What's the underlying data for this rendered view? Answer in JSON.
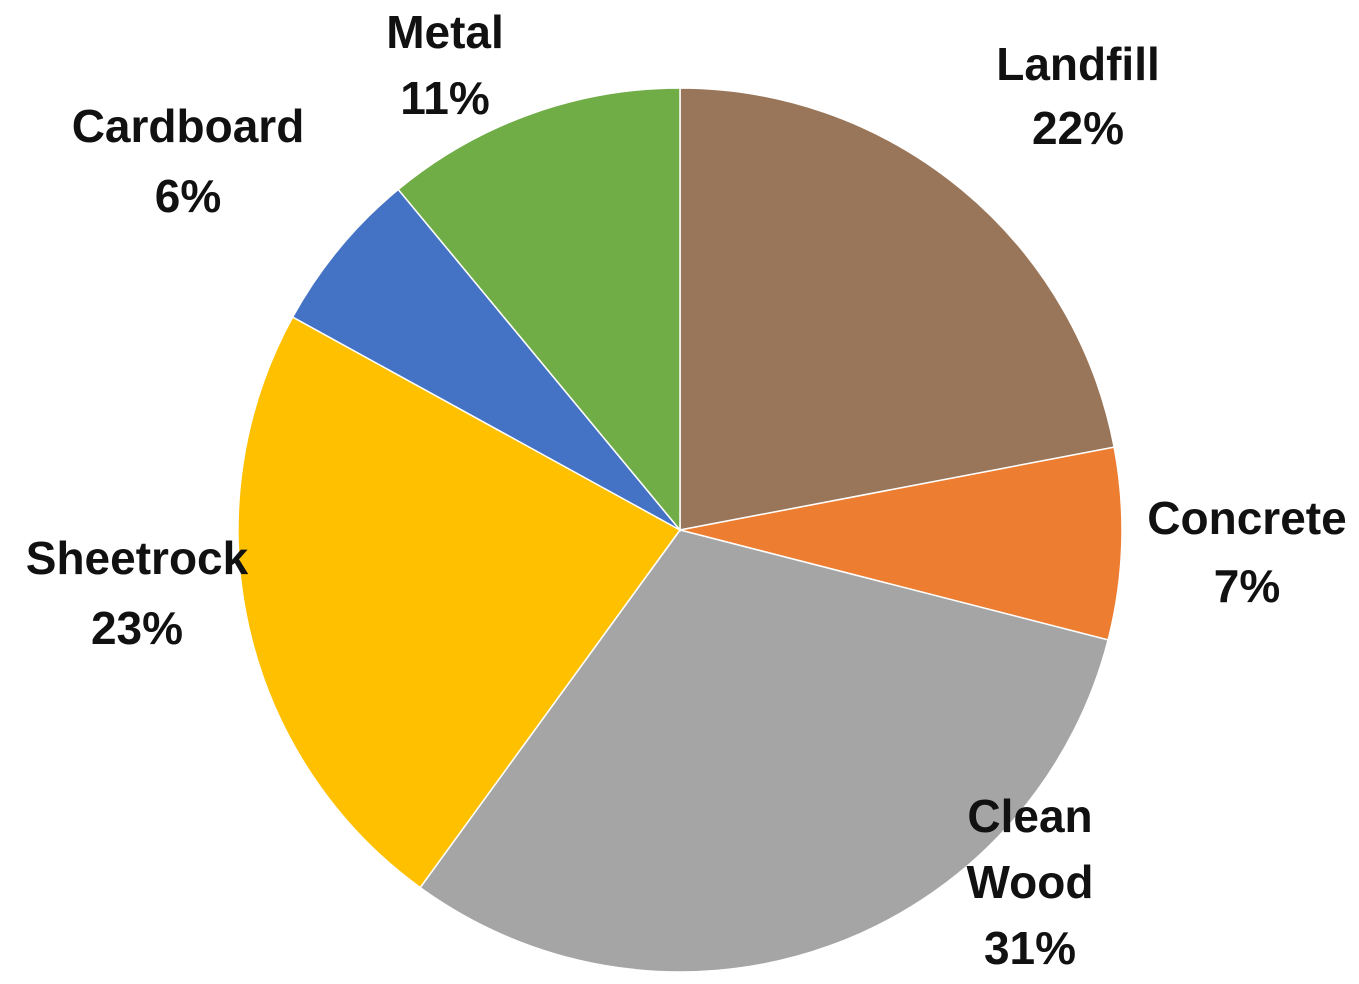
{
  "chart_data": {
    "type": "pie",
    "title": "",
    "start_angle_deg": 0,
    "direction": "clockwise",
    "slices": [
      {
        "category": "Landfill",
        "label_lines": [
          "Landfill"
        ],
        "value": 22,
        "value_label": "22%",
        "color": "#997659"
      },
      {
        "category": "Concrete",
        "label_lines": [
          "Concrete"
        ],
        "value": 7,
        "value_label": "7%",
        "color": "#ED7D31"
      },
      {
        "category": "Clean Wood",
        "label_lines": [
          "Clean",
          "Wood"
        ],
        "value": 31,
        "value_label": "31%",
        "color": "#A5A5A5"
      },
      {
        "category": "Sheetrock",
        "label_lines": [
          "Sheetrock"
        ],
        "value": 23,
        "value_label": "23%",
        "color": "#FFC000"
      },
      {
        "category": "Cardboard",
        "label_lines": [
          "Cardboard"
        ],
        "value": 6,
        "value_label": "6%",
        "color": "#4472C4"
      },
      {
        "category": "Metal",
        "label_lines": [
          "Metal"
        ],
        "value": 11,
        "value_label": "11%",
        "color": "#70AD47"
      }
    ],
    "legend": "none",
    "data_labels": "outside"
  }
}
